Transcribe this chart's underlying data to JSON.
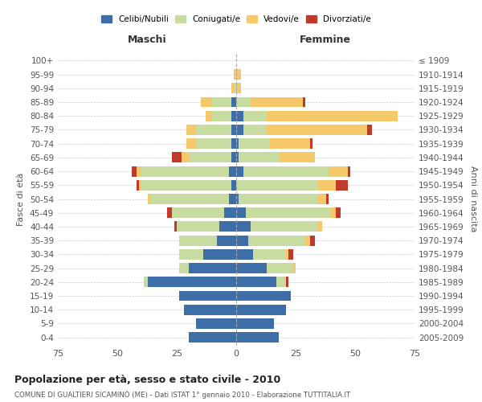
{
  "age_groups": [
    "0-4",
    "5-9",
    "10-14",
    "15-19",
    "20-24",
    "25-29",
    "30-34",
    "35-39",
    "40-44",
    "45-49",
    "50-54",
    "55-59",
    "60-64",
    "65-69",
    "70-74",
    "75-79",
    "80-84",
    "85-89",
    "90-94",
    "95-99",
    "100+"
  ],
  "birth_years": [
    "2005-2009",
    "2000-2004",
    "1995-1999",
    "1990-1994",
    "1985-1989",
    "1980-1984",
    "1975-1979",
    "1970-1974",
    "1965-1969",
    "1960-1964",
    "1955-1959",
    "1950-1954",
    "1945-1949",
    "1940-1944",
    "1935-1939",
    "1930-1934",
    "1925-1929",
    "1920-1924",
    "1915-1919",
    "1910-1914",
    "≤ 1909"
  ],
  "male": {
    "celibi": [
      20,
      17,
      22,
      24,
      37,
      20,
      14,
      8,
      7,
      5,
      3,
      2,
      3,
      2,
      2,
      2,
      2,
      2,
      0,
      0,
      0
    ],
    "coniugati": [
      0,
      0,
      0,
      0,
      2,
      4,
      10,
      16,
      18,
      22,
      33,
      38,
      37,
      18,
      15,
      15,
      8,
      8,
      1,
      0,
      0
    ],
    "vedovi": [
      0,
      0,
      0,
      0,
      0,
      0,
      0,
      0,
      0,
      0,
      1,
      1,
      2,
      3,
      4,
      4,
      3,
      5,
      1,
      1,
      0
    ],
    "divorziati": [
      0,
      0,
      0,
      0,
      0,
      0,
      0,
      0,
      1,
      2,
      0,
      1,
      2,
      4,
      0,
      0,
      0,
      0,
      0,
      0,
      0
    ]
  },
  "female": {
    "nubili": [
      18,
      16,
      21,
      23,
      17,
      13,
      7,
      5,
      6,
      4,
      1,
      0,
      3,
      1,
      1,
      3,
      3,
      0,
      0,
      0,
      0
    ],
    "coniugate": [
      0,
      0,
      0,
      0,
      4,
      11,
      14,
      24,
      28,
      36,
      33,
      34,
      36,
      17,
      13,
      10,
      10,
      6,
      0,
      0,
      0
    ],
    "vedove": [
      0,
      0,
      0,
      0,
      0,
      1,
      1,
      2,
      2,
      2,
      4,
      8,
      8,
      15,
      17,
      42,
      55,
      22,
      2,
      2,
      0
    ],
    "divorziate": [
      0,
      0,
      0,
      0,
      1,
      0,
      2,
      2,
      0,
      2,
      1,
      5,
      1,
      0,
      1,
      2,
      0,
      1,
      0,
      0,
      0
    ]
  },
  "colors": {
    "celibi": "#3d6ea8",
    "coniugati": "#c8dba0",
    "vedovi": "#f5c96a",
    "divorziati": "#c0392b"
  },
  "xlim": 75,
  "title": "Popolazione per età, sesso e stato civile - 2010",
  "subtitle": "COMUNE DI GUALTIERI SICAMINÒ (ME) - Dati ISTAT 1° gennaio 2010 - Elaborazione TUTTITALIA.IT",
  "ylabel": "Fasce di età",
  "ylabel_right": "Anni di nascita",
  "xlabel_left": "Maschi",
  "xlabel_right": "Femmine"
}
